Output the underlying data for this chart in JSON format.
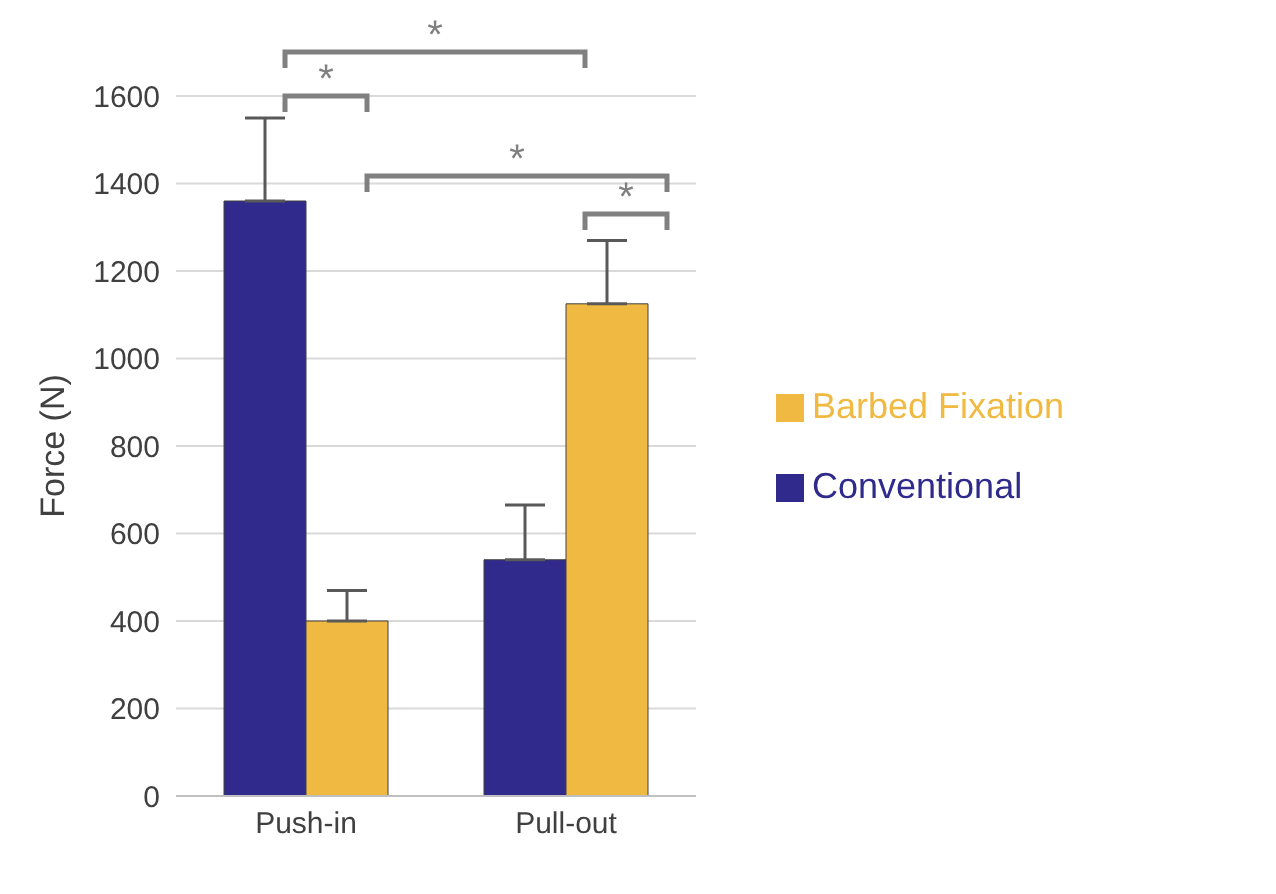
{
  "chart_data": {
    "type": "bar",
    "ylabel": "Force (N)",
    "categories": [
      "Push-in",
      "Pull-out"
    ],
    "series": [
      {
        "name": "Conventional",
        "color": "#2f2a8c",
        "values": [
          1360,
          540
        ],
        "errors": [
          [
            1360,
            1550
          ],
          [
            540,
            665
          ]
        ]
      },
      {
        "name": "Barbed Fixation",
        "color": "#f0b942",
        "values": [
          400,
          1125
        ],
        "errors": [
          [
            400,
            470
          ],
          [
            1125,
            1270
          ]
        ]
      }
    ],
    "ylim": [
      0,
      1600
    ],
    "yticks": [
      0,
      200,
      400,
      600,
      800,
      1000,
      1200,
      1400,
      1600
    ],
    "grid": "y",
    "legend": "right",
    "annotations": [
      "*",
      "*",
      "*",
      "*"
    ]
  }
}
